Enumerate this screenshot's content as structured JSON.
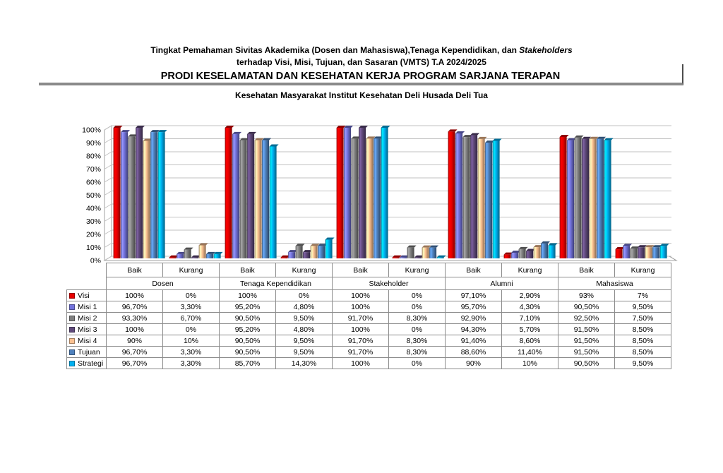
{
  "header": {
    "line1_prefix": "Tingkat Pemahaman Sivitas Akademika (Dosen dan Mahasiswa),Tenaga Kependidikan, dan ",
    "line1_italic": "Stakeholders",
    "line2": "terhadap Visi, Misi, Tujuan, dan Sasaran (VMTS) T.A 2024/2025",
    "line3": "PRODI KESELAMATAN DAN KESEHATAN KERJA PROGRAM SARJANA TERAPAN",
    "line4": "Kesehatan Masyarakat Institut Kesehatan Deli Husada Deli Tua"
  },
  "chart_data": {
    "type": "bar",
    "style": "3d-clustered-column-with-data-table",
    "groups": [
      "Dosen",
      "Tenaga Kependidikan",
      "Stakeholder",
      "Alumni",
      "Mahasiswa"
    ],
    "subcategories": [
      "Baik",
      "Kurang"
    ],
    "y_ticks": [
      "100%",
      "90%",
      "80%",
      "70%",
      "60%",
      "50%",
      "40%",
      "30%",
      "20%",
      "10%",
      "0%"
    ],
    "ylim": [
      0,
      100
    ],
    "grid": true,
    "legend_position": "table-left-column",
    "series": [
      {
        "name": "Visi",
        "color": "#E60000",
        "values": [
          100,
          0,
          100,
          0,
          100,
          0,
          97.1,
          2.9,
          93,
          7
        ],
        "labels": [
          "100%",
          "0%",
          "100%",
          "0%",
          "100%",
          "0%",
          "97,10%",
          "2,90%",
          "93%",
          "7%"
        ]
      },
      {
        "name": "Misi 1",
        "color": "#7272DC",
        "values": [
          96.7,
          3.3,
          95.2,
          4.8,
          100,
          0,
          95.7,
          4.3,
          90.5,
          9.5
        ],
        "labels": [
          "96,70%",
          "3,30%",
          "95,20%",
          "4,80%",
          "100%",
          "0%",
          "95,70%",
          "4,30%",
          "90,50%",
          "9,50%"
        ]
      },
      {
        "name": "Misi 2",
        "color": "#7F7F7F",
        "values": [
          93.3,
          6.7,
          90.5,
          9.5,
          91.7,
          8.3,
          92.9,
          7.1,
          92.5,
          7.5
        ],
        "labels": [
          "93,30%",
          "6,70%",
          "90,50%",
          "9,50%",
          "91,70%",
          "8,30%",
          "92,90%",
          "7,10%",
          "92,50%",
          "7,50%"
        ]
      },
      {
        "name": "Misi 3",
        "color": "#5F497A",
        "values": [
          100,
          0,
          95.2,
          4.8,
          100,
          0,
          94.3,
          5.7,
          91.5,
          8.5
        ],
        "labels": [
          "100%",
          "0%",
          "95,20%",
          "4,80%",
          "100%",
          "0%",
          "94,30%",
          "5,70%",
          "91,50%",
          "8,50%"
        ]
      },
      {
        "name": "Misi 4",
        "color": "#FAC090",
        "values": [
          90,
          10,
          90.5,
          9.5,
          91.7,
          8.3,
          91.4,
          8.6,
          91.5,
          8.5
        ],
        "labels": [
          "90%",
          "10%",
          "90,50%",
          "9,50%",
          "91,70%",
          "8,30%",
          "91,40%",
          "8,60%",
          "91,50%",
          "8,50%"
        ]
      },
      {
        "name": "Tujuan",
        "color": "#4F81BD",
        "values": [
          96.7,
          3.3,
          90.5,
          9.5,
          91.7,
          8.3,
          88.6,
          11.4,
          91.5,
          8.5
        ],
        "labels": [
          "96,70%",
          "3,30%",
          "90,50%",
          "9,50%",
          "91,70%",
          "8,30%",
          "88,60%",
          "11,40%",
          "91,50%",
          "8,50%"
        ]
      },
      {
        "name": "Strategi",
        "color": "#00B0F0",
        "values": [
          96.7,
          3.3,
          85.7,
          14.3,
          100,
          0,
          90,
          10,
          90.5,
          9.5
        ],
        "labels": [
          "96,70%",
          "3,30%",
          "85,70%",
          "14,30%",
          "100%",
          "0%",
          "90%",
          "10%",
          "90,50%",
          "9,50%"
        ]
      }
    ]
  },
  "decor": {
    "grid_color": "#C2C2C2",
    "wall_color": "#A0A0A0",
    "table_border_color": "#8C8C8C",
    "divider_color": "#8A8A8A"
  }
}
